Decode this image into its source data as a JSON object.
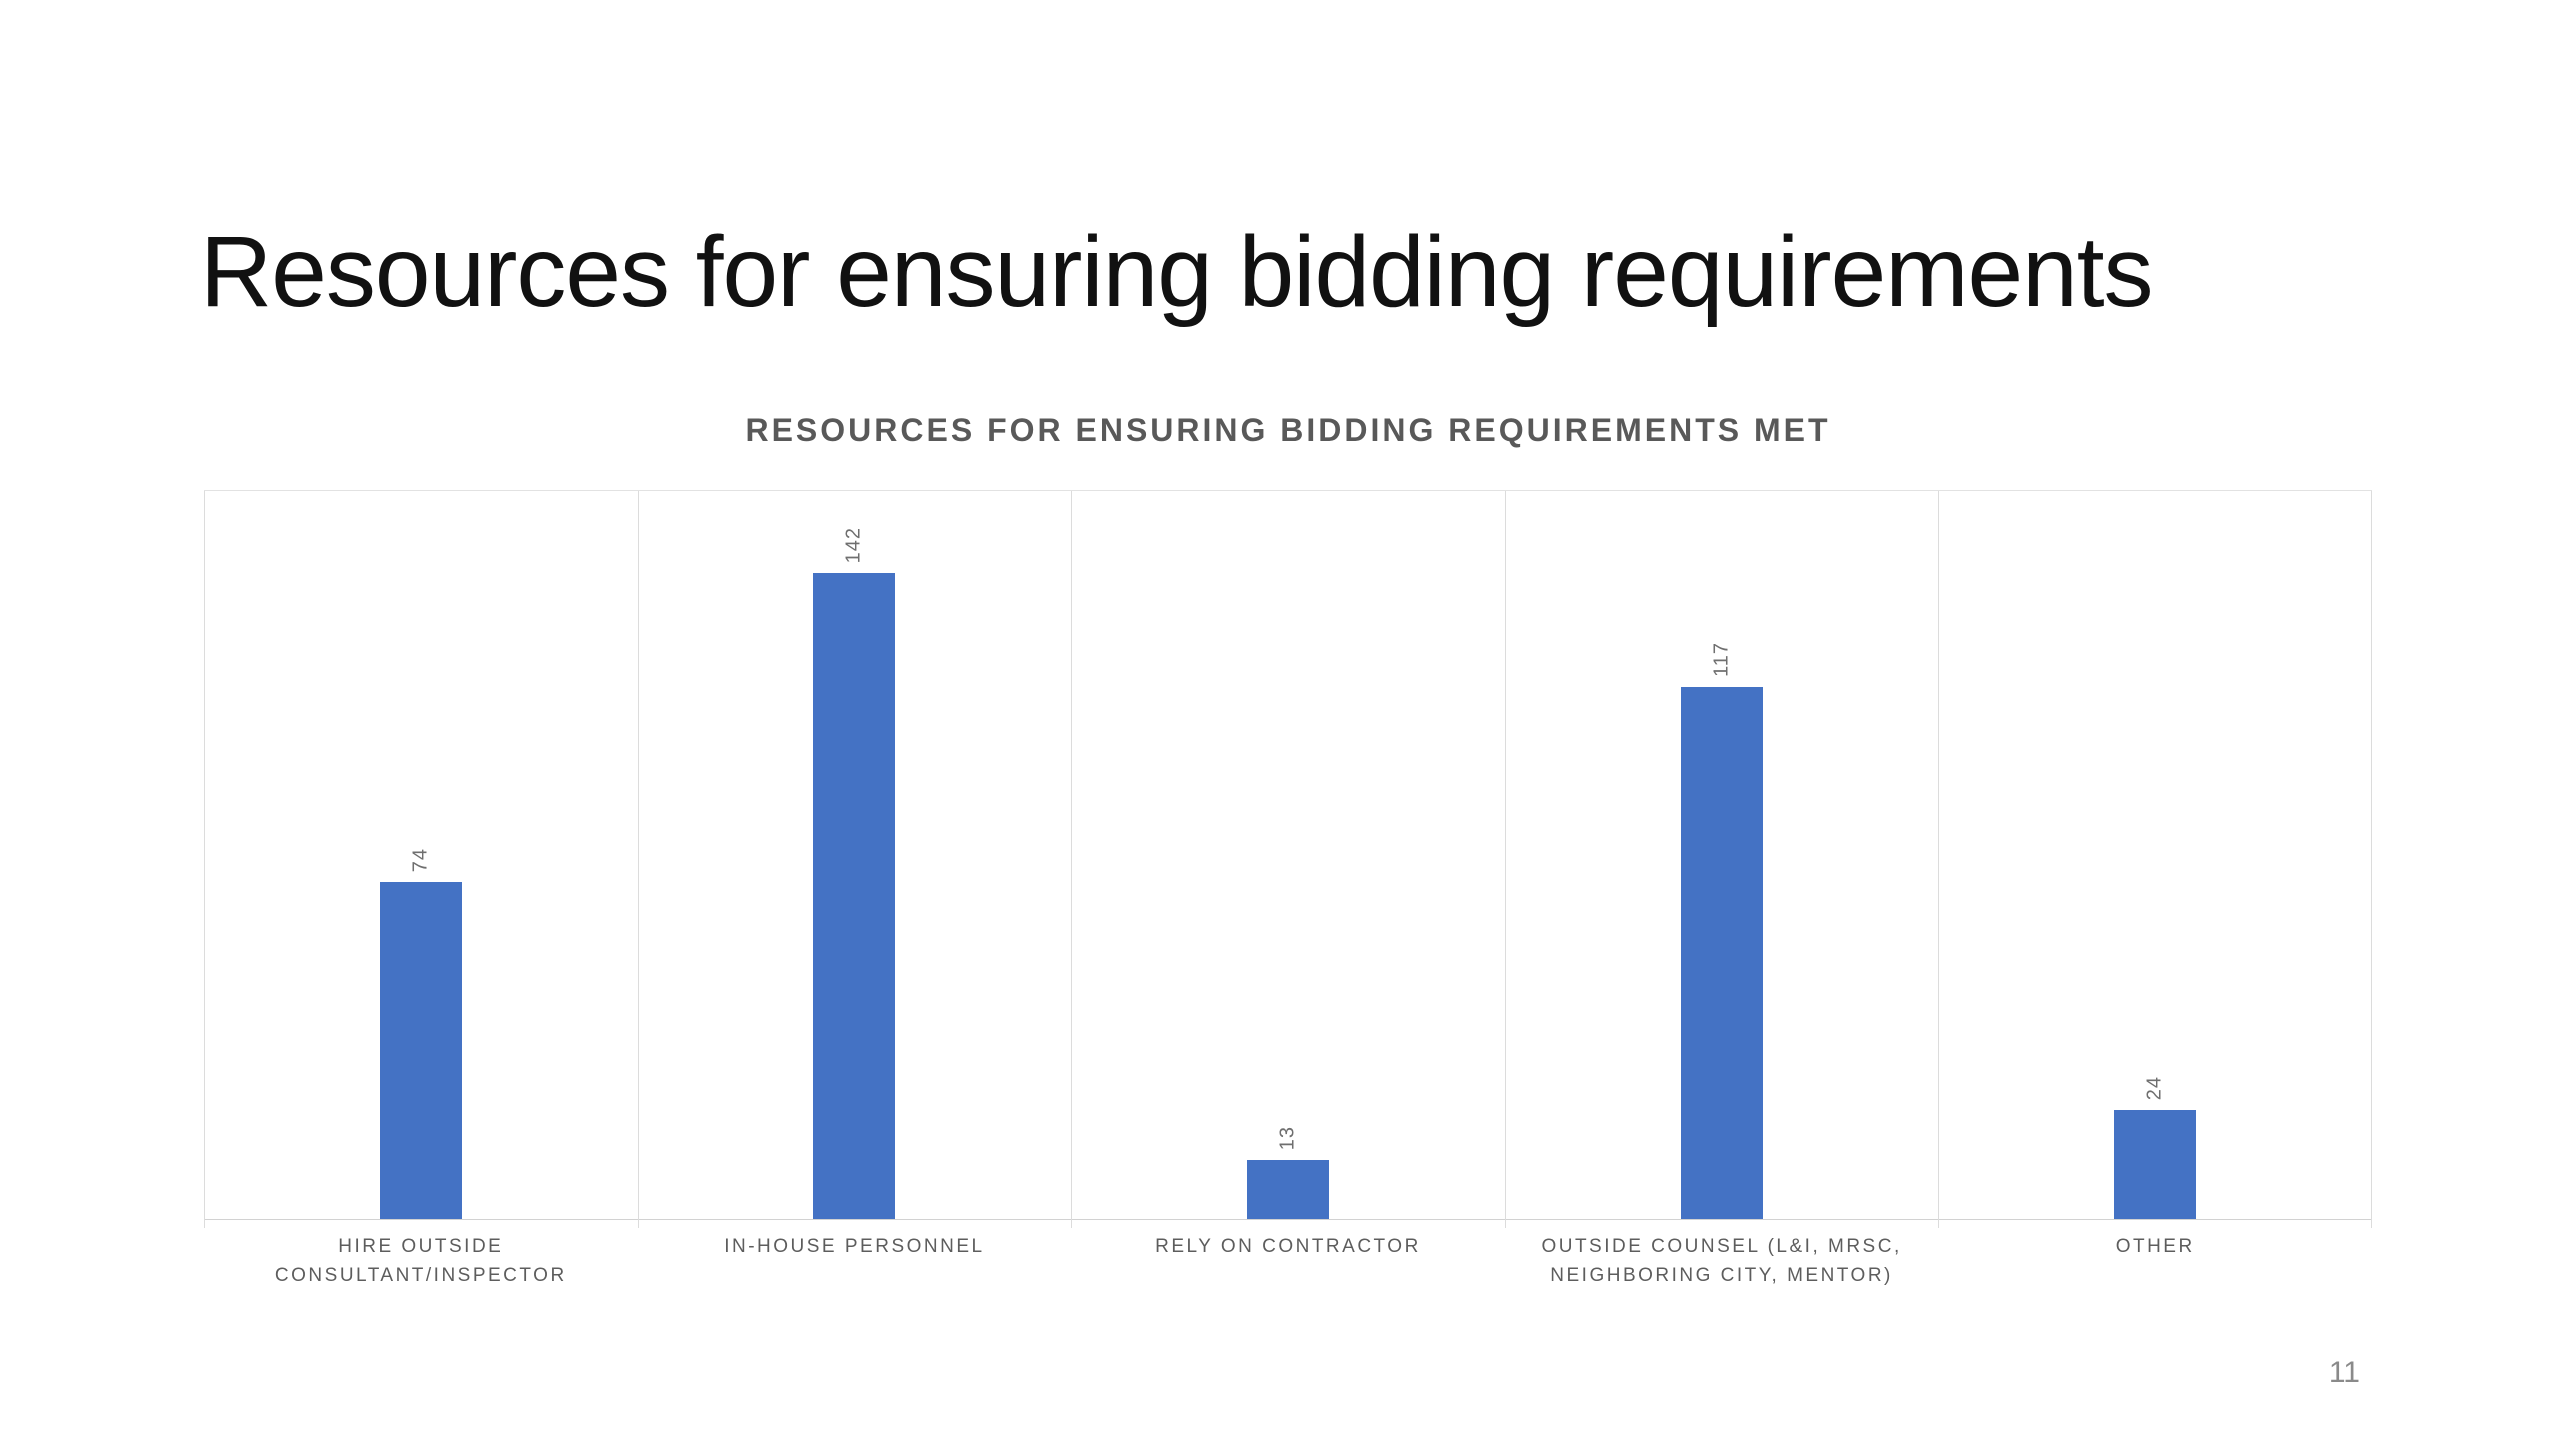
{
  "slide": {
    "title": "Resources for ensuring bidding requirements",
    "page_number": "11"
  },
  "chart_data": {
    "type": "bar",
    "title": "RESOURCES FOR ENSURING BIDDING REQUIREMENTS MET",
    "categories": [
      "HIRE OUTSIDE CONSULTANT/INSPECTOR",
      "IN-HOUSE PERSONNEL",
      "RELY ON CONTRACTOR",
      "OUTSIDE COUNSEL (L&I, MRSC, NEIGHBORING CITY, MENTOR)",
      "OTHER"
    ],
    "label_lines": [
      [
        "HIRE OUTSIDE",
        "CONSULTANT/INSPECTOR"
      ],
      [
        "IN-HOUSE PERSONNEL"
      ],
      [
        "RELY ON CONTRACTOR"
      ],
      [
        "OUTSIDE COUNSEL (L&I, MRSC,",
        "NEIGHBORING CITY, MENTOR)"
      ],
      [
        "OTHER"
      ]
    ],
    "values": [
      74,
      142,
      13,
      117,
      24
    ],
    "ylim": [
      0,
      160
    ],
    "xlabel": "",
    "ylabel": "",
    "legend": "none",
    "grid": "vertical-category-separators",
    "value_labels": "rotated-90-above-bars",
    "colors": {
      "bar": "#4472C4",
      "gridline": "#DCDCDC",
      "axis_line": "#D2D2D2",
      "plot_top_border": "#E2E2E2",
      "chart_title": "#595959",
      "category_label": "#5D5D5D",
      "value_label": "#6F6F6F",
      "slide_title": "#111111",
      "page_number": "#8A8A8A",
      "background": "#FFFFFF"
    }
  }
}
